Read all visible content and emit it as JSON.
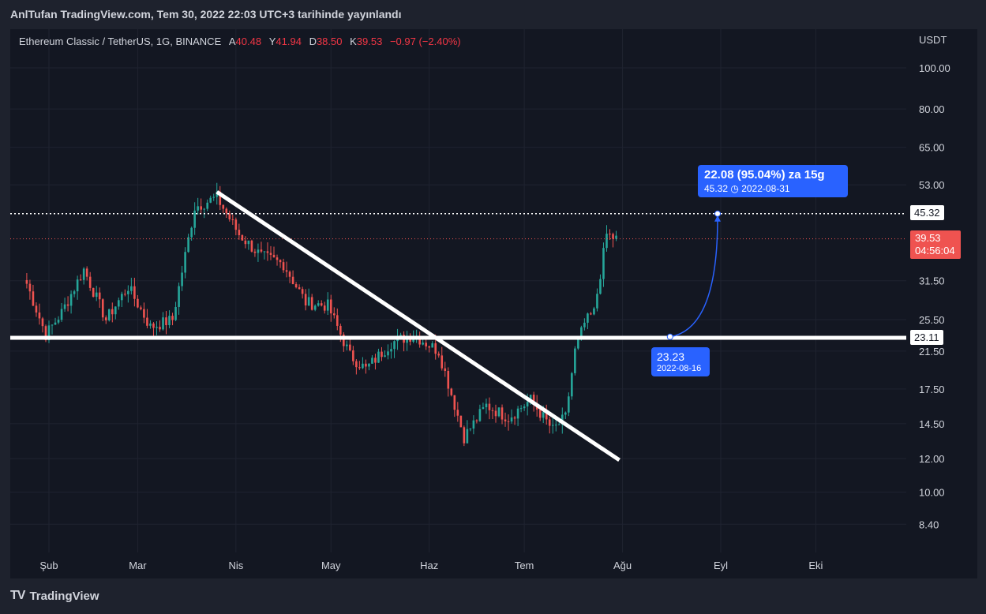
{
  "header": {
    "text": "AnlTufan TradingView.com, Tem 30, 2022 22:03 UTC+3 tarihinde yayınlandı"
  },
  "legend": {
    "symbol": "Ethereum Classic / TetherUS, 1G, BINANCE",
    "a_label": "A",
    "a_value": "40.48",
    "y_label": "Y",
    "y_value": "41.94",
    "d_label": "D",
    "d_value": "38.50",
    "k_label": "K",
    "k_value": "39.53",
    "change": "−0.97 (−2.40%)"
  },
  "price_axis": {
    "currency": "USDT",
    "ticks": [
      "100.00",
      "80.00",
      "65.00",
      "53.00",
      "31.50",
      "25.50",
      "21.50",
      "17.50",
      "14.50",
      "12.00",
      "10.00",
      "8.40"
    ]
  },
  "time_axis": {
    "ticks": [
      "Şub",
      "Mar",
      "Nis",
      "May",
      "Haz",
      "Tem",
      "Ağu",
      "Eyl",
      "Eki"
    ]
  },
  "tags": {
    "target_level": "45.32",
    "last_price": "39.53",
    "countdown": "04:56:04",
    "support_level": "23.11"
  },
  "measure": {
    "title": "22.08 (95.04%) za 15g",
    "end_price": "45.32",
    "end_date": "2022-08-31",
    "start_price": "23.23",
    "start_date": "2022-08-16"
  },
  "footer": {
    "brand": "TradingView"
  },
  "colors": {
    "up": "#26a69a",
    "down": "#ef5350",
    "accent": "#2962ff",
    "background": "#131722"
  },
  "chart_data": {
    "type": "candlestick",
    "title": "Ethereum Classic / TetherUS, 1G, BINANCE",
    "y_scale": "log",
    "ylim": [
      7.5,
      110
    ],
    "x": [
      "2022-01-25",
      "2022-01-31",
      "2022-02-05",
      "2022-02-12",
      "2022-02-19",
      "2022-02-26",
      "2022-03-05",
      "2022-03-12",
      "2022-03-19",
      "2022-03-26",
      "2022-04-02",
      "2022-04-09",
      "2022-04-16",
      "2022-04-23",
      "2022-04-30",
      "2022-05-07",
      "2022-05-12",
      "2022-05-20",
      "2022-05-27",
      "2022-06-04",
      "2022-06-12",
      "2022-06-19",
      "2022-06-26",
      "2022-07-03",
      "2022-07-10",
      "2022-07-14",
      "2022-07-17",
      "2022-07-20",
      "2022-07-23",
      "2022-07-27",
      "2022-07-30"
    ],
    "y": [
      31.0,
      23.5,
      26.5,
      33.5,
      25.5,
      30.5,
      24.5,
      25.5,
      47.0,
      49.5,
      40.5,
      36.0,
      34.5,
      28.0,
      27.5,
      21.0,
      19.5,
      22.5,
      23.5,
      21.5,
      13.5,
      16.0,
      15.0,
      16.5,
      14.0,
      15.0,
      21.5,
      25.0,
      26.5,
      40.5,
      39.53
    ],
    "support_level": 23.11,
    "target_level": 45.32,
    "trendline": {
      "from": {
        "date": "2022-03-26",
        "price": 51.0
      },
      "to": {
        "date": "2022-07-31",
        "price": 11.9
      }
    },
    "projection": {
      "from": {
        "date": "2022-08-16",
        "price": 23.23
      },
      "to": {
        "date": "2022-08-31",
        "price": 45.32
      },
      "change": "22.08 (95.04%)",
      "bars": "15g"
    }
  }
}
